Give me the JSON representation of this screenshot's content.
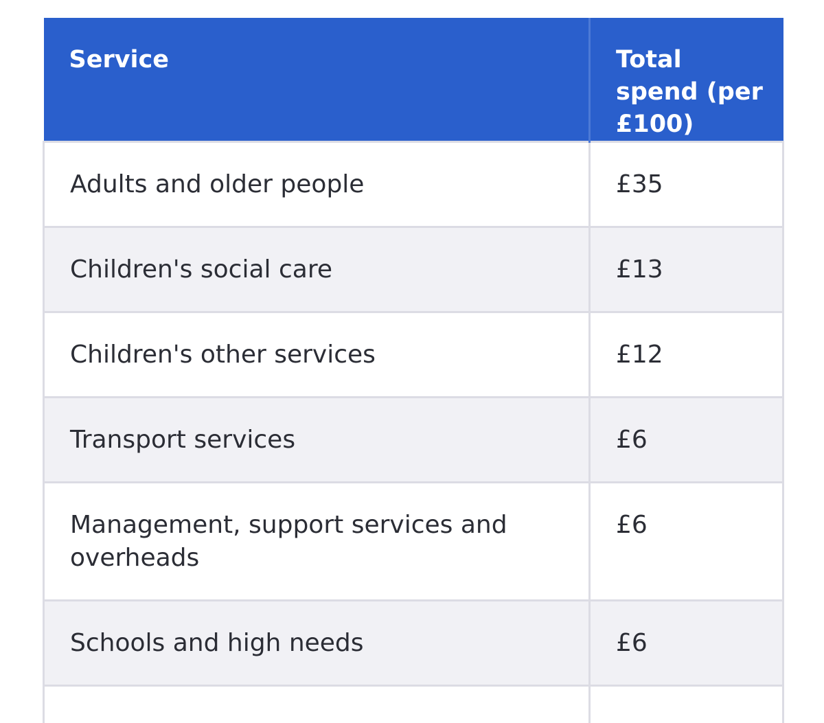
{
  "table": {
    "headers": [
      "Service",
      "Total spend (per £100)"
    ],
    "rows": [
      {
        "service": "Adults and older people",
        "spend": "£35"
      },
      {
        "service": "Children's social care",
        "spend": "£13"
      },
      {
        "service": "Children's other services",
        "spend": "£12"
      },
      {
        "service": "Transport services",
        "spend": "£6"
      },
      {
        "service": "Management, support services and overheads",
        "spend": "£6"
      },
      {
        "service": "Schools and high needs",
        "spend": "£6"
      }
    ]
  },
  "colors": {
    "header_bg": "#2a5fcc",
    "header_text": "#ffffff",
    "row_alt_bg": "#f1f1f5",
    "border": "#dcdce4",
    "body_text": "#2b2d35"
  }
}
